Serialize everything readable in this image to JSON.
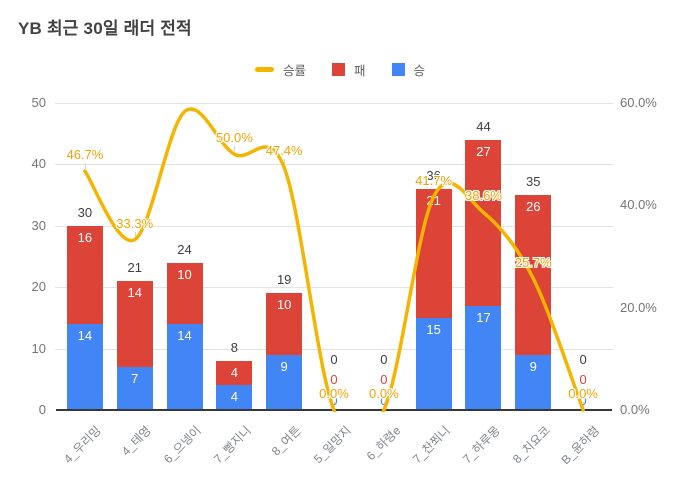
{
  "title": "YB 최근 30일 래더 전적",
  "legend": [
    {
      "name": "승률",
      "type": "line",
      "color": "#f4b400"
    },
    {
      "name": "패",
      "type": "square",
      "color": "#db4437"
    },
    {
      "name": "승",
      "type": "square",
      "color": "#4285f4"
    }
  ],
  "axes": {
    "left_ticks": [
      "0",
      "10",
      "20",
      "30",
      "40",
      "50"
    ],
    "right_ticks": [
      "0.0%",
      "20.0%",
      "40.0%",
      "60.0%"
    ]
  },
  "chart_data": {
    "type": "combo-stacked-bar-line",
    "title": "YB 최근 30일 래더 전적",
    "categories": [
      "4_우리밍",
      "4_테영",
      "6_으넹이",
      "7_빵지니",
      "8_여튼",
      "5_일망지",
      "6_하령e",
      "7_찬쬐니",
      "7_하루몽",
      "8_치요코",
      "B_윤하령"
    ],
    "series": [
      {
        "name": "승",
        "type": "bar",
        "color": "#4285f4",
        "values": [
          14,
          7,
          14,
          4,
          9,
          0,
          0,
          15,
          17,
          9,
          0
        ]
      },
      {
        "name": "패",
        "type": "bar",
        "color": "#db4437",
        "values": [
          16,
          14,
          10,
          4,
          10,
          0,
          0,
          21,
          27,
          26,
          0
        ]
      },
      {
        "name": "승률",
        "type": "line",
        "color": "#f4b400",
        "values": [
          46.7,
          33.3,
          58.3,
          50.0,
          47.4,
          0.0,
          0.0,
          41.7,
          38.6,
          25.7,
          0.0
        ],
        "labels": [
          "46.7%",
          "33.3%",
          "",
          "50.0%",
          "47.4%",
          "0.0%",
          "0.0%",
          "41.7%",
          "38.6%",
          "25.7%",
          "0.0%"
        ]
      }
    ],
    "totals": [
      30,
      21,
      24,
      8,
      19,
      0,
      0,
      36,
      44,
      35,
      0
    ],
    "left_axis_range": [
      0,
      50
    ],
    "right_axis_range": [
      0,
      60
    ],
    "grid": true,
    "legend_position": "top",
    "bars_stacked": true
  }
}
